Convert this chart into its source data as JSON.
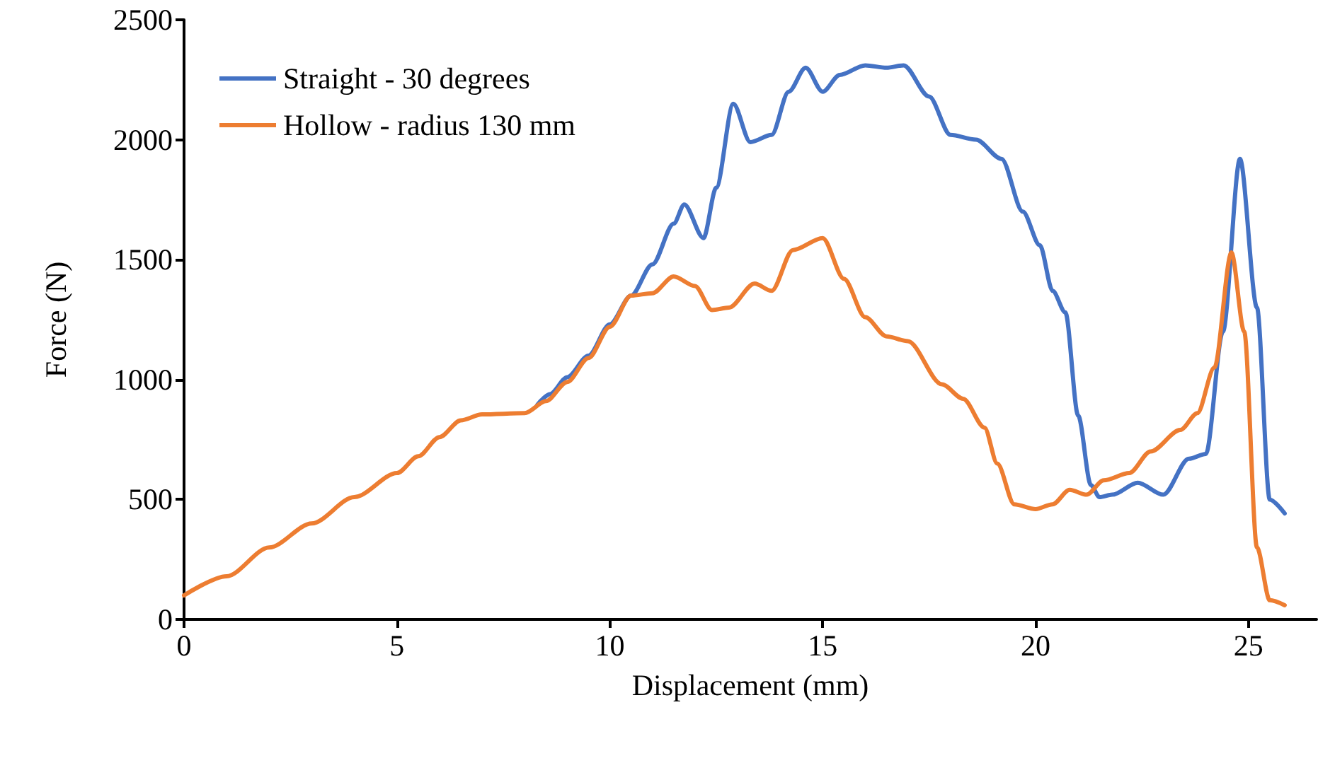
{
  "chart_data": {
    "type": "line",
    "xlabel": "Displacement (mm)",
    "ylabel": "Force (N)",
    "xlim": [
      0,
      26.6
    ],
    "xticks": [
      0,
      5,
      10,
      15,
      20,
      25
    ],
    "ylim": [
      0,
      2500
    ],
    "yticks": [
      0,
      500,
      1000,
      1500,
      2000,
      2500
    ],
    "grid": false,
    "legend": "top left",
    "marker": "none",
    "line_style": "solid",
    "series": [
      {
        "name": "Straight - 30 degrees",
        "color": "#4472c4",
        "x": [
          8.3,
          8.6,
          9,
          9.5,
          10,
          10.5,
          11,
          11.5,
          11.75,
          12.2,
          12.5,
          12.9,
          13.3,
          13.8,
          14.2,
          14.6,
          15,
          15.4,
          16,
          16.5,
          16.9,
          17.5,
          18,
          18.6,
          19.2,
          19.7,
          20.1,
          20.4,
          20.7,
          21,
          21.3,
          21.5,
          21.8,
          22.4,
          23,
          23.6,
          24,
          24.4,
          24.8,
          25.2,
          25.5,
          25.85
        ],
        "values": [
          895,
          940,
          1010,
          1100,
          1230,
          1350,
          1480,
          1650,
          1730,
          1590,
          1800,
          2150,
          1990,
          2020,
          2200,
          2300,
          2200,
          2270,
          2310,
          2300,
          2310,
          2180,
          2020,
          2000,
          1920,
          1700,
          1560,
          1370,
          1280,
          850,
          560,
          510,
          520,
          570,
          520,
          670,
          690,
          1200,
          1920,
          1300,
          500,
          442
        ]
      },
      {
        "name": "Hollow - radius 130 mm",
        "color": "#ed7d31",
        "x": [
          0,
          1,
          2,
          3,
          4,
          5,
          5.5,
          6,
          6.5,
          7,
          8,
          8.5,
          9,
          9.5,
          10,
          10.5,
          11,
          11.5,
          12,
          12.4,
          12.8,
          13.4,
          13.8,
          14.3,
          15,
          15.5,
          16,
          16.5,
          17,
          17.8,
          18.3,
          18.8,
          19.1,
          19.5,
          20,
          20.4,
          20.8,
          21.2,
          21.6,
          22.2,
          22.7,
          23.4,
          23.8,
          24.2,
          24.6,
          24.9,
          25.2,
          25.5,
          25.85
        ],
        "values": [
          100,
          180,
          300,
          400,
          510,
          610,
          680,
          760,
          830,
          855,
          860,
          910,
          990,
          1090,
          1220,
          1350,
          1360,
          1430,
          1390,
          1290,
          1300,
          1400,
          1370,
          1540,
          1590,
          1420,
          1260,
          1180,
          1160,
          980,
          920,
          800,
          650,
          480,
          460,
          480,
          540,
          520,
          580,
          610,
          700,
          790,
          860,
          1050,
          1530,
          1200,
          300,
          80,
          59
        ]
      }
    ]
  }
}
